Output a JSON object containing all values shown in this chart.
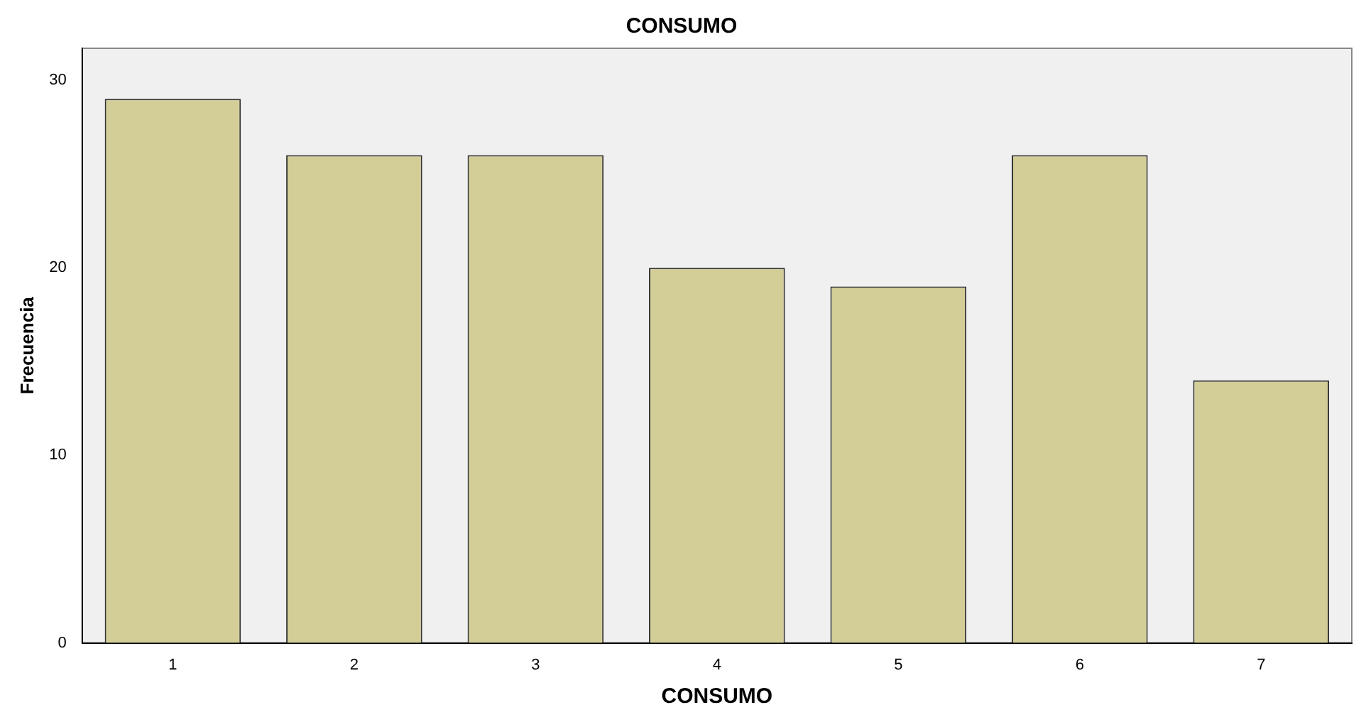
{
  "chart_data": {
    "type": "bar",
    "title": "CONSUMO",
    "xlabel": "CONSUMO",
    "ylabel": "Frecuencia",
    "categories": [
      "1",
      "2",
      "3",
      "4",
      "5",
      "6",
      "7"
    ],
    "values": [
      29,
      26,
      26,
      20,
      19,
      26,
      14
    ],
    "color": "#d3ce97",
    "ylim": [
      0,
      31.7
    ],
    "yticks": [
      0,
      10,
      20,
      30
    ],
    "grid": false,
    "legend": false
  }
}
